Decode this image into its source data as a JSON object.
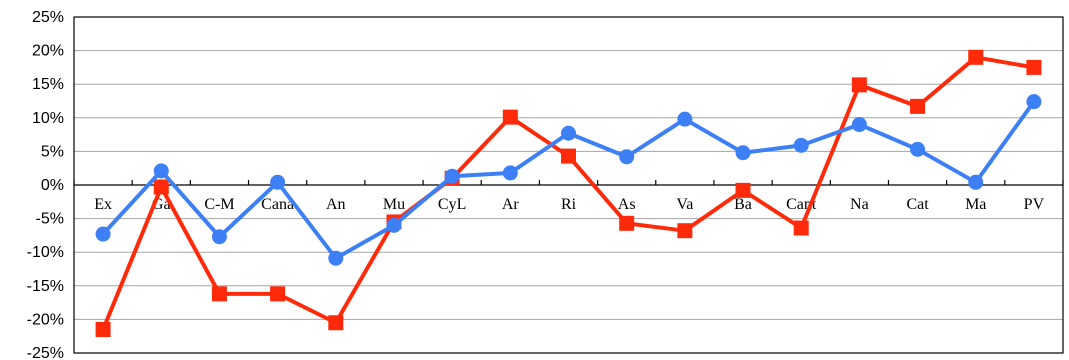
{
  "chart_data": {
    "type": "line",
    "title": "",
    "xlabel": "",
    "ylabel": "",
    "categories": [
      "Ex",
      "Ga",
      "C-M",
      "Cana",
      "An",
      "Mu",
      "CyL",
      "Ar",
      "Ri",
      "As",
      "Va",
      "Ba",
      "Cant",
      "Na",
      "Cat",
      "Ma",
      "PV"
    ],
    "ylim": [
      -25,
      25
    ],
    "yticks": [
      -25,
      -20,
      -15,
      -10,
      -5,
      0,
      5,
      10,
      15,
      20,
      25
    ],
    "ytick_labels": [
      "-25%",
      "-20%",
      "-15%",
      "-10%",
      "-5%",
      "0%",
      "5%",
      "10%",
      "15%",
      "20%",
      "25%"
    ],
    "grid": true,
    "legend": "none",
    "series": [
      {
        "color": "#3D7FF5",
        "marker": "circle",
        "values": [
          -7.3,
          2.1,
          -7.7,
          0.4,
          -10.9,
          -6.0,
          1.3,
          1.8,
          7.7,
          4.2,
          9.8,
          4.8,
          5.9,
          9.0,
          5.3,
          0.4,
          12.4
        ]
      },
      {
        "color": "#FF2A0A",
        "marker": "square",
        "values": [
          -21.5,
          -0.3,
          -16.2,
          -16.2,
          -20.5,
          -5.5,
          1.0,
          10.1,
          4.3,
          -5.7,
          -6.8,
          -0.8,
          -6.4,
          14.9,
          11.7,
          19.0,
          17.5
        ]
      }
    ]
  }
}
